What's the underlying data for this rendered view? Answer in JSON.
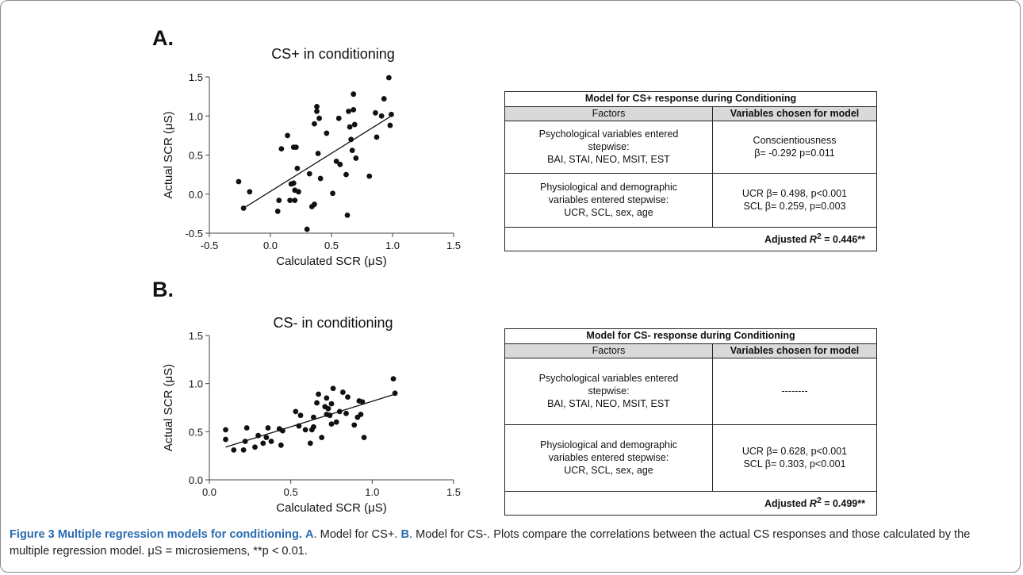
{
  "panel_a": {
    "letter": "A.",
    "table": {
      "title": "Model for CS+ response during Conditioning",
      "col1_header": "Factors",
      "col2_header": "Variables chosen for model",
      "rows": [
        {
          "factor_lines": [
            "Psychological variables entered",
            "stepwise:",
            "BAI, STAI, NEO, MSIT, EST"
          ],
          "chosen_lines": [
            "Conscientiousness",
            "β= -0.292  p=0.011"
          ]
        },
        {
          "factor_lines": [
            "Physiological and demographic",
            "variables entered stepwise:",
            "UCR, SCL, sex, age"
          ],
          "chosen_lines": [
            "UCR β= 0.498, p<0.001",
            "SCL β= 0.259, p=0.003"
          ]
        }
      ],
      "adjusted_prefix": "Adjusted ",
      "adjusted_r": "R",
      "adjusted_sup": "2",
      "adjusted_value": " = 0.446**"
    }
  },
  "panel_b": {
    "letter": "B.",
    "table": {
      "title": "Model for CS- response during Conditioning",
      "col1_header": "Factors",
      "col2_header": "Variables chosen for model",
      "rows": [
        {
          "factor_lines": [
            "Psychological variables entered",
            "stepwise:",
            "BAI, STAI, NEO, MSIT, EST"
          ],
          "chosen_lines": [
            "--------"
          ]
        },
        {
          "factor_lines": [
            "Physiological and demographic",
            "variables entered stepwise:",
            "UCR, SCL, sex, age"
          ],
          "chosen_lines": [
            "UCR β= 0.628, p<0.001",
            "SCL β= 0.303, p<0.001"
          ]
        }
      ],
      "adjusted_prefix": "Adjusted ",
      "adjusted_r": "R",
      "adjusted_sup": "2",
      "adjusted_value": " = 0.499**"
    }
  },
  "caption": {
    "fig_label": "Figure 3 Multiple regression models for conditioning.",
    "a_label": "A",
    "a_text": ". Model for CS+. ",
    "b_label": "B",
    "b_text": ". Model for CS-. Plots compare the correlations between the actual CS responses and those calculated by the multiple regression model. μS = microsiemens, **p < 0.01."
  },
  "chart_data": [
    {
      "type": "scatter",
      "title": "CS+ in conditioning",
      "xlabel": "Calculated SCR (μS)",
      "ylabel": "Actual SCR (μS)",
      "xlim": [
        -0.5,
        1.5
      ],
      "ylim": [
        -0.5,
        1.5
      ],
      "xticks": [
        "-0.5",
        "0.0",
        "0.5",
        "1.0",
        "1.5"
      ],
      "yticks": [
        "-0.5",
        "0.0",
        "0.5",
        "1.0",
        "1.5"
      ],
      "grid": false,
      "trendline": {
        "x": [
          -0.22,
          0.98
        ],
        "y": [
          -0.18,
          0.99
        ]
      },
      "points": [
        [
          -0.26,
          0.16
        ],
        [
          -0.22,
          -0.18
        ],
        [
          -0.17,
          0.03
        ],
        [
          0.06,
          -0.22
        ],
        [
          0.07,
          -0.08
        ],
        [
          0.09,
          0.58
        ],
        [
          0.14,
          0.75
        ],
        [
          0.16,
          -0.08
        ],
        [
          0.17,
          0.13
        ],
        [
          0.19,
          0.6
        ],
        [
          0.19,
          0.14
        ],
        [
          0.2,
          0.05
        ],
        [
          0.2,
          -0.08
        ],
        [
          0.21,
          0.6
        ],
        [
          0.22,
          0.33
        ],
        [
          0.23,
          0.03
        ],
        [
          0.3,
          -0.45
        ],
        [
          0.32,
          0.26
        ],
        [
          0.34,
          -0.16
        ],
        [
          0.36,
          0.9
        ],
        [
          0.36,
          -0.13
        ],
        [
          0.38,
          1.06
        ],
        [
          0.38,
          1.12
        ],
        [
          0.39,
          0.52
        ],
        [
          0.4,
          0.97
        ],
        [
          0.41,
          0.2
        ],
        [
          0.46,
          0.78
        ],
        [
          0.51,
          0.01
        ],
        [
          0.54,
          0.42
        ],
        [
          0.56,
          0.97
        ],
        [
          0.57,
          0.38
        ],
        [
          0.62,
          0.25
        ],
        [
          0.63,
          -0.27
        ],
        [
          0.64,
          1.06
        ],
        [
          0.65,
          0.86
        ],
        [
          0.66,
          0.7
        ],
        [
          0.67,
          0.56
        ],
        [
          0.68,
          1.28
        ],
        [
          0.68,
          1.08
        ],
        [
          0.69,
          0.89
        ],
        [
          0.7,
          0.46
        ],
        [
          0.81,
          0.23
        ],
        [
          0.86,
          1.04
        ],
        [
          0.87,
          0.73
        ],
        [
          0.91,
          1.0
        ],
        [
          0.93,
          1.22
        ],
        [
          0.97,
          1.49
        ],
        [
          0.98,
          0.88
        ],
        [
          0.99,
          1.02
        ]
      ]
    },
    {
      "type": "scatter",
      "title": "CS- in conditioning",
      "xlabel": "Calculated SCR (μS)",
      "ylabel": "Actual SCR (μS)",
      "xlim": [
        0.0,
        1.5
      ],
      "ylim": [
        0.0,
        1.5
      ],
      "xticks": [
        "0.0",
        "0.5",
        "1.0",
        "1.5"
      ],
      "yticks": [
        "0.0",
        "0.5",
        "1.0",
        "1.5"
      ],
      "grid": false,
      "trendline": {
        "x": [
          0.1,
          1.14
        ],
        "y": [
          0.34,
          0.89
        ]
      },
      "points": [
        [
          0.1,
          0.42
        ],
        [
          0.1,
          0.52
        ],
        [
          0.15,
          0.31
        ],
        [
          0.21,
          0.31
        ],
        [
          0.22,
          0.4
        ],
        [
          0.23,
          0.54
        ],
        [
          0.28,
          0.34
        ],
        [
          0.3,
          0.46
        ],
        [
          0.33,
          0.38
        ],
        [
          0.35,
          0.44
        ],
        [
          0.36,
          0.54
        ],
        [
          0.38,
          0.4
        ],
        [
          0.43,
          0.53
        ],
        [
          0.44,
          0.36
        ],
        [
          0.45,
          0.51
        ],
        [
          0.53,
          0.71
        ],
        [
          0.55,
          0.56
        ],
        [
          0.56,
          0.67
        ],
        [
          0.59,
          0.52
        ],
        [
          0.62,
          0.38
        ],
        [
          0.63,
          0.52
        ],
        [
          0.64,
          0.55
        ],
        [
          0.64,
          0.65
        ],
        [
          0.66,
          0.8
        ],
        [
          0.67,
          0.89
        ],
        [
          0.69,
          0.44
        ],
        [
          0.71,
          0.76
        ],
        [
          0.72,
          0.68
        ],
        [
          0.72,
          0.85
        ],
        [
          0.73,
          0.74
        ],
        [
          0.74,
          0.67
        ],
        [
          0.75,
          0.79
        ],
        [
          0.75,
          0.58
        ],
        [
          0.76,
          0.95
        ],
        [
          0.78,
          0.6
        ],
        [
          0.8,
          0.71
        ],
        [
          0.82,
          0.91
        ],
        [
          0.84,
          0.69
        ],
        [
          0.85,
          0.86
        ],
        [
          0.89,
          0.57
        ],
        [
          0.91,
          0.65
        ],
        [
          0.92,
          0.82
        ],
        [
          0.93,
          0.68
        ],
        [
          0.94,
          0.81
        ],
        [
          0.95,
          0.44
        ],
        [
          1.13,
          1.05
        ],
        [
          1.14,
          0.9
        ]
      ]
    }
  ]
}
